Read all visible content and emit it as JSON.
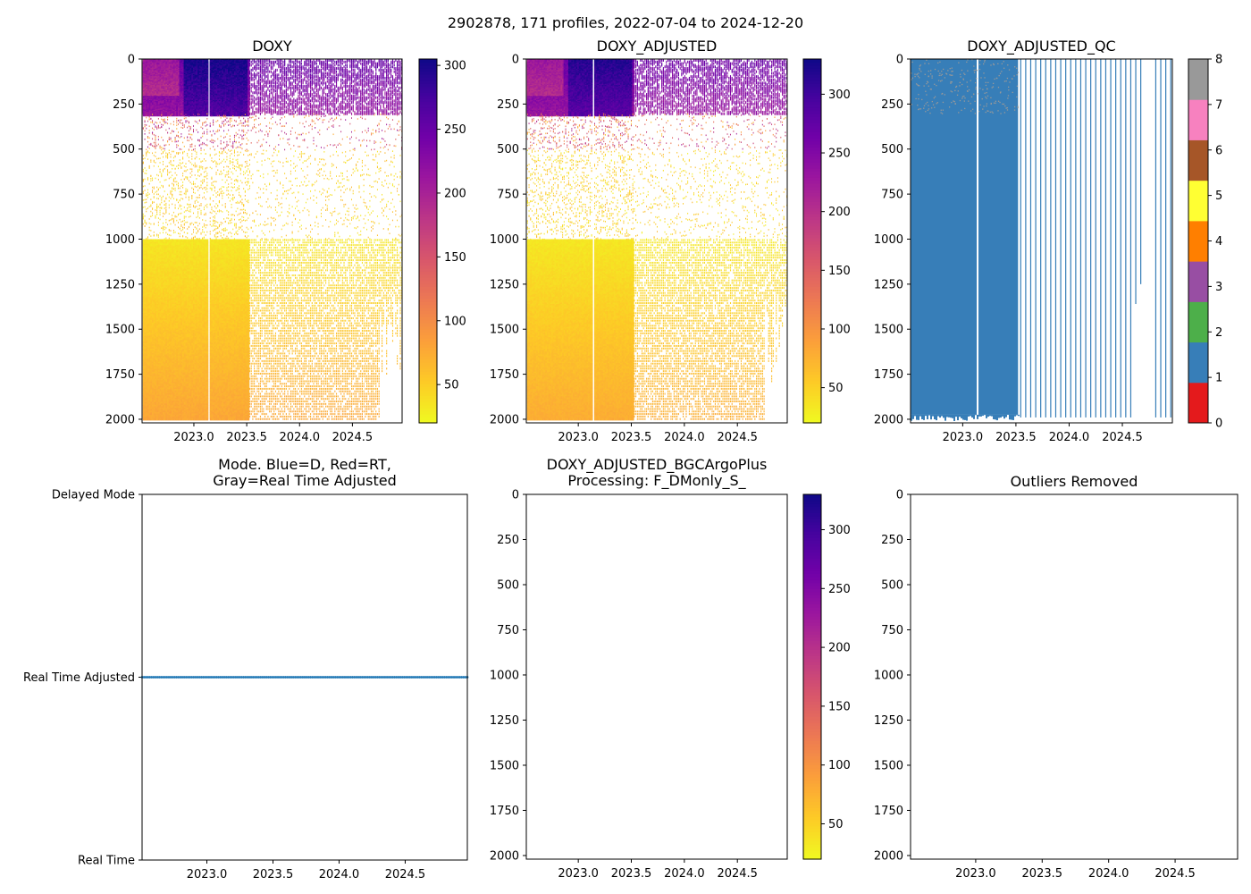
{
  "suptitle": "2902878, 171 profiles, 2022-07-04 to 2024-12-20",
  "colors": {
    "axis": "#000000",
    "qc_fill": "#377eb8",
    "mode_marker": "#1f77b4",
    "plasma_stops": [
      "#f0f921",
      "#fdca26",
      "#fb9f3a",
      "#ed7953",
      "#d8576b",
      "#bd3786",
      "#9c179e",
      "#7201a8",
      "#46039f",
      "#0d0887"
    ],
    "qc_palette": [
      "#e41a1c",
      "#377eb8",
      "#4daf4a",
      "#984ea3",
      "#ff7f00",
      "#ffff33",
      "#a65628",
      "#f781bf",
      "#999999"
    ]
  },
  "chart_data": [
    {
      "id": "doxy",
      "type": "heatmap",
      "title": "DOXY",
      "x_range": [
        2022.51,
        2024.97
      ],
      "y_range": [
        2020,
        0
      ],
      "x_ticks": [
        2023.0,
        2023.5,
        2024.0,
        2024.5
      ],
      "x_tick_labels": [
        "2023.0",
        "2023.5",
        "2024.0",
        "2024.5"
      ],
      "y_ticks": [
        0,
        250,
        500,
        750,
        1000,
        1250,
        1500,
        1750,
        2000
      ],
      "y_tick_labels": [
        "0",
        "250",
        "500",
        "750",
        "1000",
        "1250",
        "1500",
        "1750",
        "2000"
      ],
      "colorbar": {
        "range": [
          20,
          305
        ],
        "ticks": [
          50,
          100,
          150,
          200,
          250,
          300
        ],
        "tick_labels": [
          "50",
          "100",
          "150",
          "200",
          "250",
          "300"
        ],
        "colormap": "plasma_r"
      }
    },
    {
      "id": "doxy_adj",
      "type": "heatmap",
      "title": "DOXY_ADJUSTED",
      "x_range": [
        2022.51,
        2024.97
      ],
      "y_range": [
        2020,
        0
      ],
      "x_ticks": [
        2023.0,
        2023.5,
        2024.0,
        2024.5
      ],
      "x_tick_labels": [
        "2023.0",
        "2023.5",
        "2024.0",
        "2024.5"
      ],
      "y_ticks": [
        0,
        250,
        500,
        750,
        1000,
        1250,
        1500,
        1750,
        2000
      ],
      "y_tick_labels": [
        "0",
        "250",
        "500",
        "750",
        "1000",
        "1250",
        "1500",
        "1750",
        "2000"
      ],
      "colorbar": {
        "range": [
          20,
          330
        ],
        "ticks": [
          50,
          100,
          150,
          200,
          250,
          300
        ],
        "tick_labels": [
          "50",
          "100",
          "150",
          "200",
          "250",
          "300"
        ],
        "colormap": "plasma_r"
      }
    },
    {
      "id": "doxy_qc",
      "type": "heatmap",
      "title": "DOXY_ADJUSTED_QC",
      "x_range": [
        2022.51,
        2024.97
      ],
      "y_range": [
        2020,
        0
      ],
      "x_ticks": [
        2023.0,
        2023.5,
        2024.0,
        2024.5
      ],
      "x_tick_labels": [
        "2023.0",
        "2023.5",
        "2024.0",
        "2024.5"
      ],
      "y_ticks": [
        0,
        250,
        500,
        750,
        1000,
        1250,
        1500,
        1750,
        2000
      ],
      "y_tick_labels": [
        "0",
        "250",
        "500",
        "750",
        "1000",
        "1250",
        "1500",
        "1750",
        "2000"
      ],
      "colorbar": {
        "range": [
          0,
          8
        ],
        "ticks": [
          0,
          1,
          2,
          3,
          4,
          5,
          6,
          7,
          8
        ],
        "tick_labels": [
          "0",
          "1",
          "2",
          "3",
          "4",
          "5",
          "6",
          "7",
          "8"
        ],
        "colormap": "qc_discrete"
      }
    },
    {
      "id": "mode",
      "type": "scatter",
      "title_lines": [
        "Mode. Blue=D, Red=RT,",
        "Gray=Real Time Adjusted"
      ],
      "x_range": [
        2022.51,
        2024.97
      ],
      "y_range": [
        0,
        2
      ],
      "x_ticks": [
        2023.0,
        2023.5,
        2024.0,
        2024.5
      ],
      "x_tick_labels": [
        "2023.0",
        "2023.5",
        "2024.0",
        "2024.5"
      ],
      "y_ticks": [
        0,
        1,
        2
      ],
      "y_tick_labels": [
        "Real Time",
        "Real Time Adjusted",
        "Delayed Mode"
      ],
      "series": [
        {
          "name": "profiles",
          "x_start": 2022.51,
          "x_end": 2024.97,
          "y": 1,
          "count": 171
        }
      ]
    },
    {
      "id": "bgc_plus",
      "type": "heatmap",
      "title_lines": [
        "DOXY_ADJUSTED_BGCArgoPlus",
        "Processing: F_DMonly_S_"
      ],
      "x_range": [
        2022.51,
        2024.97
      ],
      "y_range": [
        2020,
        0
      ],
      "x_ticks": [
        2023.0,
        2023.5,
        2024.0,
        2024.5
      ],
      "x_tick_labels": [
        "2023.0",
        "2023.5",
        "2024.0",
        "2024.5"
      ],
      "y_ticks": [
        0,
        250,
        500,
        750,
        1000,
        1250,
        1500,
        1750,
        2000
      ],
      "y_tick_labels": [
        "0",
        "250",
        "500",
        "750",
        "1000",
        "1250",
        "1500",
        "1750",
        "2000"
      ],
      "colorbar": {
        "range": [
          20,
          330
        ],
        "ticks": [
          50,
          100,
          150,
          200,
          250,
          300
        ],
        "tick_labels": [
          "50",
          "100",
          "150",
          "200",
          "250",
          "300"
        ],
        "colormap": "plasma_r"
      }
    },
    {
      "id": "outliers",
      "type": "heatmap",
      "title": "Outliers Removed",
      "x_range": [
        2022.51,
        2024.97
      ],
      "y_range": [
        2020,
        0
      ],
      "x_ticks": [
        2023.0,
        2023.5,
        2024.0,
        2024.5
      ],
      "x_tick_labels": [
        "2023.0",
        "2023.5",
        "2024.0",
        "2024.5"
      ],
      "y_ticks": [
        0,
        250,
        500,
        750,
        1000,
        1250,
        1500,
        1750,
        2000
      ],
      "y_tick_labels": [
        "0",
        "250",
        "500",
        "750",
        "1000",
        "1250",
        "1500",
        "1750",
        "2000"
      ]
    }
  ]
}
